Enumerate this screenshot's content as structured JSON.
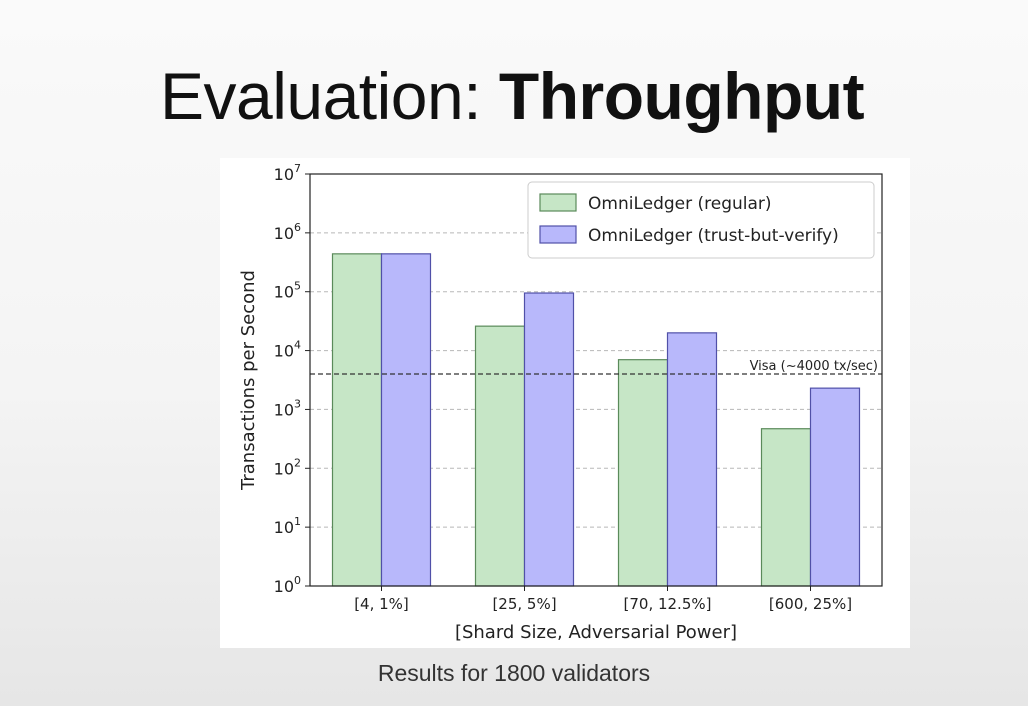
{
  "slide": {
    "title_light": "Evaluation: ",
    "title_bold": "Throughput",
    "caption": "Results for 1800 validators"
  },
  "chart_data": {
    "type": "bar",
    "title": "",
    "xlabel": "[Shard Size, Adversarial Power]",
    "ylabel": "Transactions per Second",
    "yscale": "log",
    "ylim": [
      1,
      10000000
    ],
    "ytick_values": [
      1,
      10,
      100,
      1000,
      10000,
      100000,
      1000000,
      10000000
    ],
    "ytick_base": "10",
    "ytick_exponents": [
      "0",
      "1",
      "2",
      "3",
      "4",
      "5",
      "6",
      "7"
    ],
    "categories": [
      "[4, 1%]",
      "[25, 5%]",
      "[70, 12.5%]",
      "[600, 25%]"
    ],
    "series": [
      {
        "name": "OmniLedger (regular)",
        "values": [
          440000,
          26000,
          7000,
          470
        ],
        "color": "#c6e6c6",
        "edge": "#5a8a5a"
      },
      {
        "name": "OmniLedger (trust-but-verify)",
        "values": [
          440000,
          95000,
          20000,
          2300
        ],
        "color": "#b8b8fb",
        "edge": "#5050a8"
      }
    ],
    "reference_line": {
      "value": 4000,
      "label": "Visa (~4000 tx/sec)"
    },
    "grid": "horizontal-dashed",
    "legend_position": "top-right"
  }
}
